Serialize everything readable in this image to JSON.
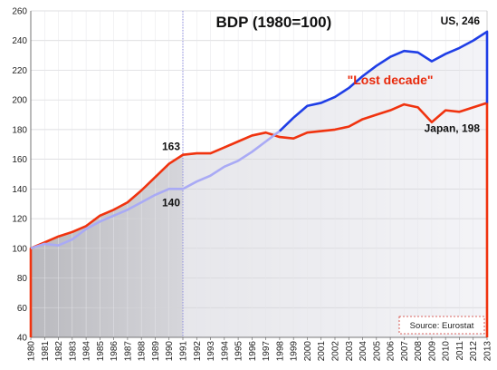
{
  "chart_data": {
    "type": "line",
    "title": "BDP (1980=100)",
    "xlabel": "",
    "ylabel": "",
    "ylim": [
      40,
      260
    ],
    "y_ticks": [
      40,
      60,
      80,
      100,
      120,
      140,
      160,
      180,
      200,
      220,
      240,
      260
    ],
    "x": [
      "1980",
      "1981",
      "1982",
      "1983",
      "1984",
      "1985",
      "1986",
      "1987",
      "1988",
      "1989",
      "1990",
      "1991",
      "1992",
      "1993",
      "1994",
      "1995",
      "1996",
      "1997",
      "1998",
      "1999",
      "2000",
      "2001",
      "2002",
      "2003",
      "2004",
      "2005",
      "2006",
      "2007",
      "2008",
      "2009",
      "2010",
      "2011",
      "2012",
      "2013"
    ],
    "series": [
      {
        "name": "US",
        "values": [
          100,
          103,
          102,
          106,
          113,
          118,
          122,
          126,
          131,
          136,
          140,
          140,
          145,
          149,
          155,
          159,
          165,
          172,
          179,
          188,
          196,
          198,
          202,
          208,
          216,
          223,
          229,
          233,
          232,
          226,
          231,
          235,
          240,
          246
        ]
      },
      {
        "name": "Japan",
        "values": [
          100,
          104,
          108,
          111,
          115,
          122,
          126,
          131,
          139,
          148,
          157,
          163,
          164,
          164,
          168,
          172,
          176,
          178,
          175,
          174,
          178,
          179,
          180,
          182,
          187,
          190,
          193,
          197,
          195,
          185,
          193,
          192,
          195,
          198
        ]
      }
    ],
    "colors": {
      "US": "#1f3ee6",
      "US_before_1998": "#a9aaf5",
      "Japan": "#f0330f",
      "vline": "#8e8ee0",
      "shade_left": "#bdbdc2",
      "shade_right": "#ebebef"
    },
    "vline_at": "1991",
    "grid": true,
    "annotations": [
      {
        "text": "163",
        "at_x": "1991",
        "at_y": 163
      },
      {
        "text": "140",
        "at_x": "1991",
        "at_y": 140
      },
      {
        "text": "US, 246",
        "at_x": "2013",
        "at_y": 246
      },
      {
        "text": "Japan, 198",
        "at_x": "2013",
        "at_y": 198
      },
      {
        "text": "\"Lost decade\"",
        "at_x": "2007",
        "at_y": 210
      }
    ],
    "source": "Source: Eurostat"
  }
}
